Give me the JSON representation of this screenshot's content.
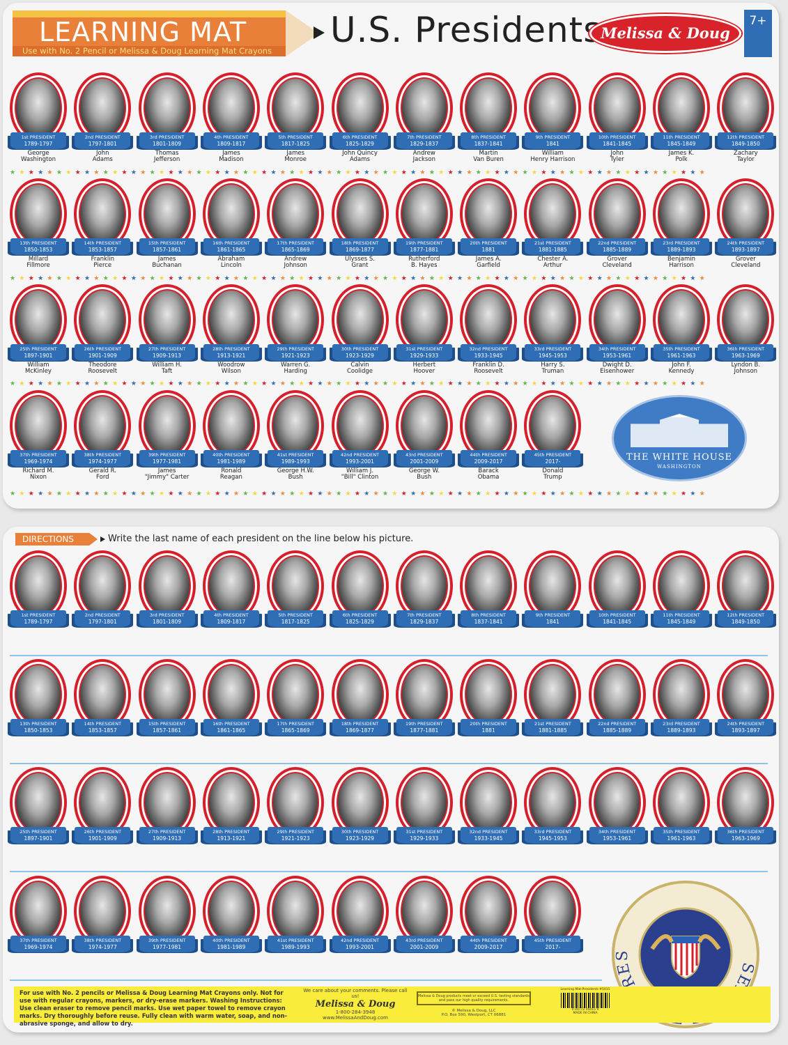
{
  "header": {
    "badge": "LEARNING MAT",
    "subtitle": "Use with No. 2 Pencil or Melissa & Doug Learning Mat Crayons",
    "title": "U.S. Presidents",
    "brand": "Melissa & Doug",
    "age": "7+"
  },
  "white_house": {
    "title": "THE WHITE HOUSE",
    "subtitle": "WASHINGTON"
  },
  "directions": {
    "label": "DIRECTIONS",
    "text": "Write the last name of each president on the line below his picture."
  },
  "seal_text": "SEAL OF THE PRESIDENT OF THE UNITED STATES",
  "colors": {
    "ring": "#d51f2b",
    "ribbon": "#2f6db5",
    "pencil": "#e9803a",
    "footer": "#f9ec3a",
    "stars": [
      "#5cb947",
      "#f7d83a",
      "#d51f2b",
      "#2f6db5",
      "#ee8a3a"
    ]
  },
  "presidents": [
    {
      "ord": "1st PRESIDENT",
      "years": "1789-1797",
      "name": [
        "George",
        "Washington"
      ]
    },
    {
      "ord": "2nd PRESIDENT",
      "years": "1797-1801",
      "name": [
        "John",
        "Adams"
      ]
    },
    {
      "ord": "3rd PRESIDENT",
      "years": "1801-1809",
      "name": [
        "Thomas",
        "Jefferson"
      ]
    },
    {
      "ord": "4th PRESIDENT",
      "years": "1809-1817",
      "name": [
        "James",
        "Madison"
      ]
    },
    {
      "ord": "5th PRESIDENT",
      "years": "1817-1825",
      "name": [
        "James",
        "Monroe"
      ]
    },
    {
      "ord": "6th PRESIDENT",
      "years": "1825-1829",
      "name": [
        "John Quincy",
        "Adams"
      ]
    },
    {
      "ord": "7th PRESIDENT",
      "years": "1829-1837",
      "name": [
        "Andrew",
        "Jackson"
      ]
    },
    {
      "ord": "8th PRESIDENT",
      "years": "1837-1841",
      "name": [
        "Martin",
        "Van Buren"
      ]
    },
    {
      "ord": "9th PRESIDENT",
      "years": "1841",
      "name": [
        "William",
        "Henry Harrison"
      ]
    },
    {
      "ord": "10th PRESIDENT",
      "years": "1841-1845",
      "name": [
        "John",
        "Tyler"
      ]
    },
    {
      "ord": "11th PRESIDENT",
      "years": "1845-1849",
      "name": [
        "James K.",
        "Polk"
      ]
    },
    {
      "ord": "12th PRESIDENT",
      "years": "1849-1850",
      "name": [
        "Zachary",
        "Taylor"
      ]
    },
    {
      "ord": "13th PRESIDENT",
      "years": "1850-1853",
      "name": [
        "Millard",
        "Fillmore"
      ]
    },
    {
      "ord": "14th PRESIDENT",
      "years": "1853-1857",
      "name": [
        "Franklin",
        "Pierce"
      ]
    },
    {
      "ord": "15th PRESIDENT",
      "years": "1857-1861",
      "name": [
        "James",
        "Buchanan"
      ]
    },
    {
      "ord": "16th PRESIDENT",
      "years": "1861-1865",
      "name": [
        "Abraham",
        "Lincoln"
      ]
    },
    {
      "ord": "17th PRESIDENT",
      "years": "1865-1869",
      "name": [
        "Andrew",
        "Johnson"
      ]
    },
    {
      "ord": "18th PRESIDENT",
      "years": "1869-1877",
      "name": [
        "Ulysses S.",
        "Grant"
      ]
    },
    {
      "ord": "19th PRESIDENT",
      "years": "1877-1881",
      "name": [
        "Rutherford",
        "B. Hayes"
      ]
    },
    {
      "ord": "20th PRESIDENT",
      "years": "1881",
      "name": [
        "James A.",
        "Garfield"
      ]
    },
    {
      "ord": "21st PRESIDENT",
      "years": "1881-1885",
      "name": [
        "Chester A.",
        "Arthur"
      ]
    },
    {
      "ord": "22nd PRESIDENT",
      "years": "1885-1889",
      "name": [
        "Grover",
        "Cleveland"
      ]
    },
    {
      "ord": "23rd PRESIDENT",
      "years": "1889-1893",
      "name": [
        "Benjamin",
        "Harrison"
      ]
    },
    {
      "ord": "24th PRESIDENT",
      "years": "1893-1897",
      "name": [
        "Grover",
        "Cleveland"
      ]
    },
    {
      "ord": "25th PRESIDENT",
      "years": "1897-1901",
      "name": [
        "William",
        "McKinley"
      ]
    },
    {
      "ord": "26th PRESIDENT",
      "years": "1901-1909",
      "name": [
        "Theodore",
        "Roosevelt"
      ]
    },
    {
      "ord": "27th PRESIDENT",
      "years": "1909-1913",
      "name": [
        "William H.",
        "Taft"
      ]
    },
    {
      "ord": "28th PRESIDENT",
      "years": "1913-1921",
      "name": [
        "Woodrow",
        "Wilson"
      ]
    },
    {
      "ord": "29th PRESIDENT",
      "years": "1921-1923",
      "name": [
        "Warren G.",
        "Harding"
      ]
    },
    {
      "ord": "30th PRESIDENT",
      "years": "1923-1929",
      "name": [
        "Calvin",
        "Coolidge"
      ]
    },
    {
      "ord": "31st PRESIDENT",
      "years": "1929-1933",
      "name": [
        "Herbert",
        "Hoover"
      ]
    },
    {
      "ord": "32nd PRESIDENT",
      "years": "1933-1945",
      "name": [
        "Franklin D.",
        "Roosevelt"
      ]
    },
    {
      "ord": "33rd PRESIDENT",
      "years": "1945-1953",
      "name": [
        "Harry S.",
        "Truman"
      ]
    },
    {
      "ord": "34th PRESIDENT",
      "years": "1953-1961",
      "name": [
        "Dwight D.",
        "Eisenhower"
      ]
    },
    {
      "ord": "35th PRESIDENT",
      "years": "1961-1963",
      "name": [
        "John F.",
        "Kennedy"
      ]
    },
    {
      "ord": "36th PRESIDENT",
      "years": "1963-1969",
      "name": [
        "Lyndon B.",
        "Johnson"
      ]
    },
    {
      "ord": "37th PRESIDENT",
      "years": "1969-1974",
      "name": [
        "Richard M.",
        "Nixon"
      ]
    },
    {
      "ord": "38th PRESIDENT",
      "years": "1974-1977",
      "name": [
        "Gerald R.",
        "Ford"
      ]
    },
    {
      "ord": "39th PRESIDENT",
      "years": "1977-1981",
      "name": [
        "James",
        "\"Jimmy\" Carter"
      ]
    },
    {
      "ord": "40th PRESIDENT",
      "years": "1981-1989",
      "name": [
        "Ronald",
        "Reagan"
      ]
    },
    {
      "ord": "41st PRESIDENT",
      "years": "1989-1993",
      "name": [
        "George H.W.",
        "Bush"
      ]
    },
    {
      "ord": "42nd PRESIDENT",
      "years": "1993-2001",
      "name": [
        "William J.",
        "\"Bill\" Clinton"
      ]
    },
    {
      "ord": "43rd PRESIDENT",
      "years": "2001-2009",
      "name": [
        "George W.",
        "Bush"
      ]
    },
    {
      "ord": "44th PRESIDENT",
      "years": "2009-2017",
      "name": [
        "Barack",
        "Obama"
      ]
    },
    {
      "ord": "45th PRESIDENT",
      "years": "2017-",
      "name": [
        "Donald",
        "Trump"
      ]
    }
  ],
  "footer": {
    "instructions": "For use with No. 2 pencils or Melissa & Doug Learning Mat Crayons only. Not for use with regular crayons, markers, or dry-erase markers. Washing Instructions: Use clean eraser to remove pencil marks. Use wet paper towel to remove crayon marks. Dry thoroughly before reuse. Fully clean with warm water, soap, and non-abrasive sponge, and allow to dry.",
    "care": "We care about your comments. Please call us!",
    "signature": "Melissa & Doug",
    "phone": "1-800-284-3948",
    "web": "www.MelissaAndDoug.com",
    "quality": "Melissa & Doug products meet or exceed U.S. testing standards and pass our high quality requirements.",
    "copyright": "© Melissa & Doug, LLC",
    "address": "P.O. Box 590, Westport, CT 06881",
    "product": "Learning Mat-Presidents #5015",
    "barcode": "0 00772 05015 9",
    "origin": "MADE IN CHINA"
  }
}
